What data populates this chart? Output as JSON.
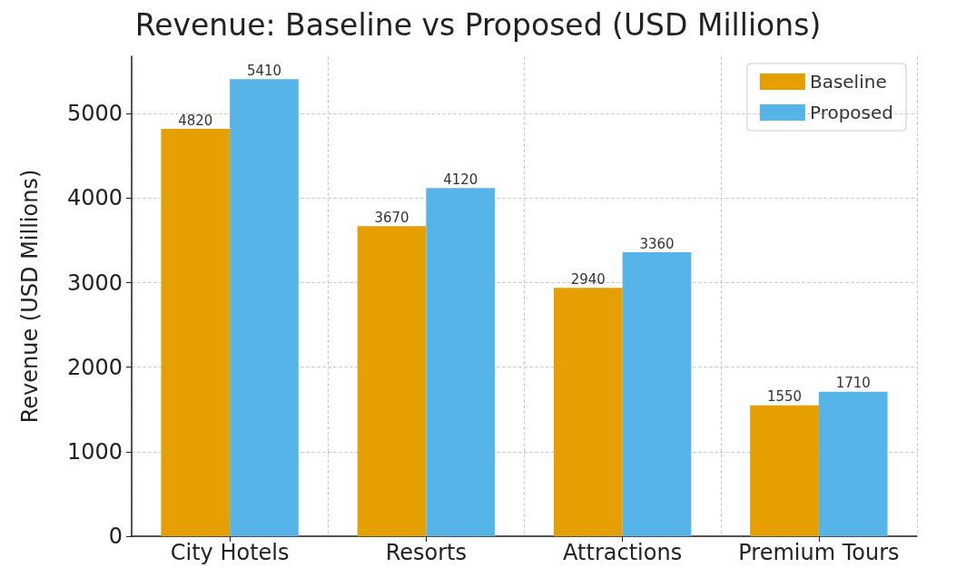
{
  "chart_data": {
    "type": "bar",
    "title": "Revenue: Baseline vs Proposed (USD Millions)",
    "ylabel": "Revenue (USD Millions)",
    "categories": [
      "City Hotels",
      "Resorts",
      "Attractions",
      "Premium Tours"
    ],
    "series": [
      {
        "name": "Baseline",
        "color": "#e69f00",
        "values": [
          4820,
          3670,
          2940,
          1550
        ]
      },
      {
        "name": "Proposed",
        "color": "#56b4e9",
        "values": [
          5410,
          4120,
          3360,
          1710
        ]
      }
    ],
    "ylim": [
      0,
      5680
    ],
    "yticks": [
      0,
      1000,
      2000,
      3000,
      4000,
      5000
    ],
    "grid": true,
    "legend": "top right",
    "data_labels": true
  }
}
